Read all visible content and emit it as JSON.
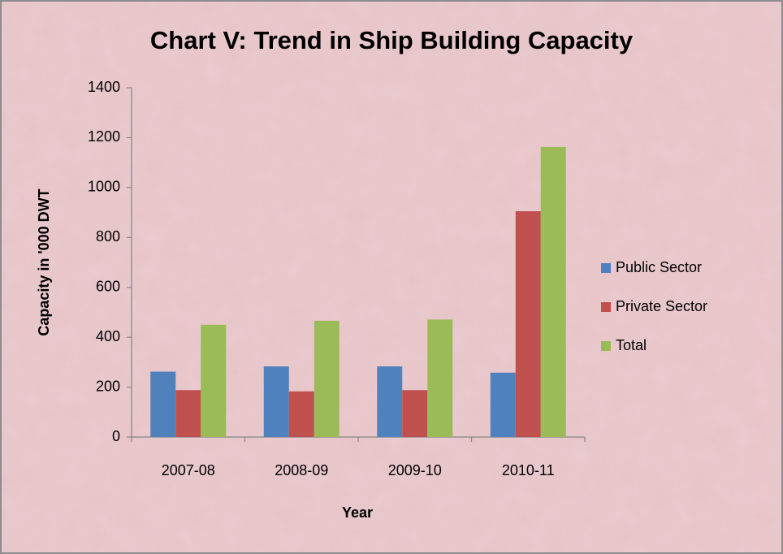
{
  "chart_data": {
    "type": "bar",
    "title": "Chart V: Trend in Ship Building Capacity",
    "x_label": "Year",
    "y_label": "Capacity in '000 DWT",
    "categories": [
      "2007-08",
      "2008-09",
      "2009-10",
      "2010-11"
    ],
    "series": [
      {
        "name": "Public Sector",
        "color": "#4f81bd",
        "values": [
          262,
          283,
          283,
          258
        ]
      },
      {
        "name": "Private Sector",
        "color": "#c0504d",
        "values": [
          188,
          183,
          188,
          905
        ]
      },
      {
        "name": "Total",
        "color": "#9bbb59",
        "values": [
          450,
          466,
          471,
          1163
        ]
      }
    ],
    "ylim": [
      0,
      1400
    ],
    "yticks": [
      0,
      200,
      400,
      600,
      800,
      1000,
      1200,
      1400
    ],
    "legend": "right",
    "grid": false
  }
}
